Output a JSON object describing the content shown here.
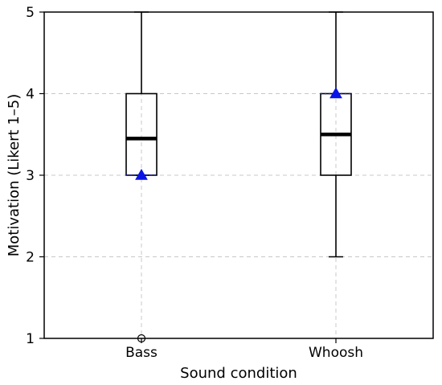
{
  "chart_data": {
    "type": "box",
    "xlabel": "Sound condition",
    "ylabel": "Motivation (Likert 1–5)",
    "ylim": [
      1,
      5
    ],
    "yticks": [
      1,
      2,
      3,
      4,
      5
    ],
    "grid": true,
    "categories": [
      "Bass",
      "Whoosh"
    ],
    "boxes": [
      {
        "category": "Bass",
        "whisker_low": 3,
        "q1": 3,
        "median": 3.45,
        "q3": 4,
        "whisker_high": 5,
        "mean": 3,
        "fliers": [
          1
        ]
      },
      {
        "category": "Whoosh",
        "whisker_low": 2,
        "q1": 3,
        "median": 3.5,
        "q3": 4,
        "whisker_high": 5,
        "mean": 4,
        "fliers": []
      }
    ],
    "colors": {
      "mean": "#0a14e6",
      "box": "#000000",
      "grid": "#c8c8c8"
    }
  }
}
